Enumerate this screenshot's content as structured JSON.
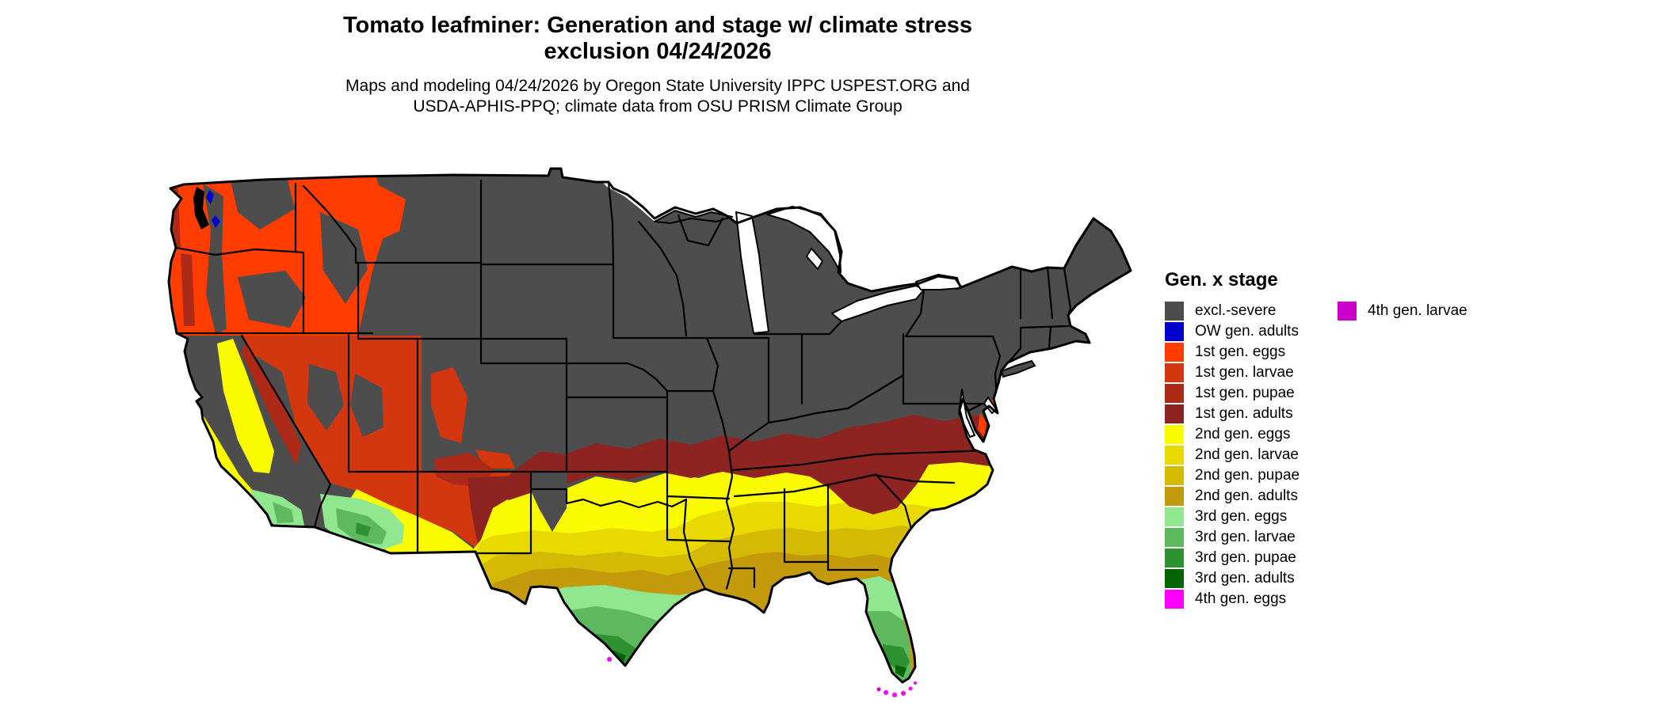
{
  "header": {
    "title_line1": "Tomato leafminer: Generation and stage w/ climate stress",
    "title_line2": "exclusion 04/24/2026",
    "subtitle_line1": "Maps and modeling 04/24/2026 by Oregon State University IPPC USPEST.ORG and",
    "subtitle_line2": "USDA-APHIS-PPQ; climate data from OSU PRISM Climate Group"
  },
  "legend": {
    "title": "Gen. x stage",
    "colors": {
      "excl_severe": "#4d4d4d",
      "ow_adults": "#0000cc",
      "g1_eggs": "#ff3d00",
      "g1_larvae": "#d23710",
      "g1_pupae": "#ad2a18",
      "g1_adults": "#8e2422",
      "g2_eggs": "#fbfb00",
      "g2_larvae": "#e8da00",
      "g2_pupae": "#d4ba05",
      "g2_adults": "#c39a0b",
      "g3_eggs": "#90e790",
      "g3_larvae": "#5eb85e",
      "g3_pupae": "#2f9232",
      "g3_adults": "#026402",
      "g4_eggs": "#ff00ff",
      "g4_larvae": "#cc00cc"
    },
    "columns": [
      [
        {
          "key": "excl_severe",
          "label": "excl.-severe"
        },
        {
          "key": "ow_adults",
          "label": "OW gen. adults"
        },
        {
          "key": "g1_eggs",
          "label": "1st gen. eggs"
        },
        {
          "key": "g1_larvae",
          "label": "1st gen. larvae"
        },
        {
          "key": "g1_pupae",
          "label": "1st gen. pupae"
        },
        {
          "key": "g1_adults",
          "label": "1st gen. adults"
        },
        {
          "key": "g2_eggs",
          "label": "2nd gen. eggs"
        },
        {
          "key": "g2_larvae",
          "label": "2nd gen. larvae"
        },
        {
          "key": "g2_pupae",
          "label": "2nd gen. pupae"
        },
        {
          "key": "g2_adults",
          "label": "2nd gen. adults"
        },
        {
          "key": "g3_eggs",
          "label": "3rd gen. eggs"
        },
        {
          "key": "g3_larvae",
          "label": "3rd gen. larvae"
        },
        {
          "key": "g3_pupae",
          "label": "3rd gen. pupae"
        },
        {
          "key": "g3_adults",
          "label": "3rd gen. adults"
        },
        {
          "key": "g4_eggs",
          "label": "4th gen. eggs"
        }
      ],
      [
        {
          "key": "g4_larvae",
          "label": "4th gen. larvae"
        }
      ]
    ]
  },
  "map_regions": {
    "north_and_mountains": "excl.-severe",
    "pacific_northwest_great_basin": "1st gen. eggs / larvae / pupae",
    "washington_cascades_specks": "OW gen. adults",
    "mid_latitude_band_virginia_kentucky_missouri": "1st gen. adults",
    "california_central_valley_carolinas_oklahoma_band": "2nd gen. eggs",
    "deep_south_central_texas": "2nd gen. larvae / pupae / adults",
    "south_texas_florida_southern_arizona": "3rd gen. eggs / larvae / pupae / adults",
    "florida_keys_rio_grande_tip": "4th gen. eggs / larvae"
  }
}
